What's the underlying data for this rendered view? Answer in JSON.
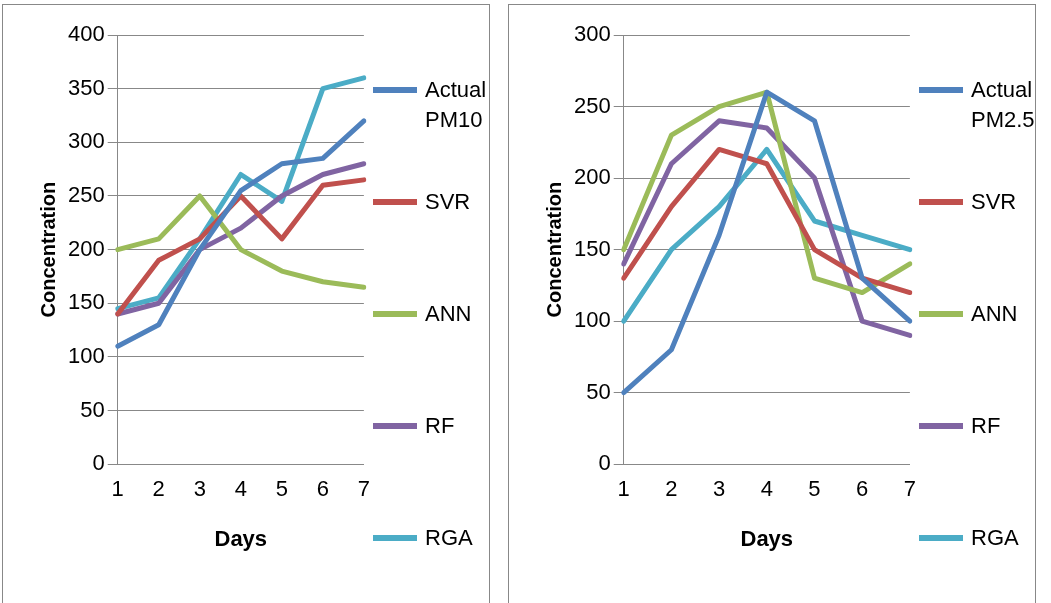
{
  "chart_data": [
    {
      "type": "line",
      "xlabel": "Days",
      "ylabel": "Concentration",
      "categories": [
        "1",
        "2",
        "3",
        "4",
        "5",
        "6",
        "7"
      ],
      "ylim": [
        0,
        400
      ],
      "yticks": [
        0,
        50,
        100,
        150,
        200,
        250,
        300,
        350,
        400
      ],
      "grid": "y",
      "legend": "right",
      "marker": "none",
      "line_style": "solid",
      "series": [
        {
          "name": "Actual PM10",
          "color": "#4f81bd",
          "values": [
            110,
            130,
            200,
            255,
            280,
            285,
            320
          ]
        },
        {
          "name": "SVR",
          "color": "#c0504d",
          "values": [
            140,
            190,
            210,
            250,
            210,
            260,
            265
          ]
        },
        {
          "name": "ANN",
          "color": "#9bbb59",
          "values": [
            200,
            210,
            250,
            200,
            180,
            170,
            165
          ]
        },
        {
          "name": "RF",
          "color": "#8064a2",
          "values": [
            140,
            150,
            200,
            220,
            250,
            270,
            280
          ]
        },
        {
          "name": "RGA",
          "color": "#4bacc6",
          "values": [
            145,
            155,
            210,
            270,
            245,
            350,
            360
          ]
        }
      ]
    },
    {
      "type": "line",
      "xlabel": "Days",
      "ylabel": "Concentration",
      "categories": [
        "1",
        "2",
        "3",
        "4",
        "5",
        "6",
        "7"
      ],
      "ylim": [
        0,
        300
      ],
      "yticks": [
        0,
        50,
        100,
        150,
        200,
        250,
        300
      ],
      "grid": "y",
      "legend": "right",
      "marker": "none",
      "line_style": "solid",
      "series": [
        {
          "name": "Actual PM2.5",
          "color": "#4f81bd",
          "values": [
            50,
            80,
            160,
            260,
            240,
            130,
            100
          ]
        },
        {
          "name": "SVR",
          "color": "#c0504d",
          "values": [
            130,
            180,
            220,
            210,
            150,
            130,
            120
          ]
        },
        {
          "name": "ANN",
          "color": "#9bbb59",
          "values": [
            150,
            230,
            250,
            260,
            130,
            120,
            140
          ]
        },
        {
          "name": "RF",
          "color": "#8064a2",
          "values": [
            140,
            210,
            240,
            235,
            200,
            100,
            90
          ]
        },
        {
          "name": "RGA",
          "color": "#4bacc6",
          "values": [
            100,
            150,
            180,
            220,
            170,
            160,
            150
          ]
        }
      ]
    }
  ]
}
